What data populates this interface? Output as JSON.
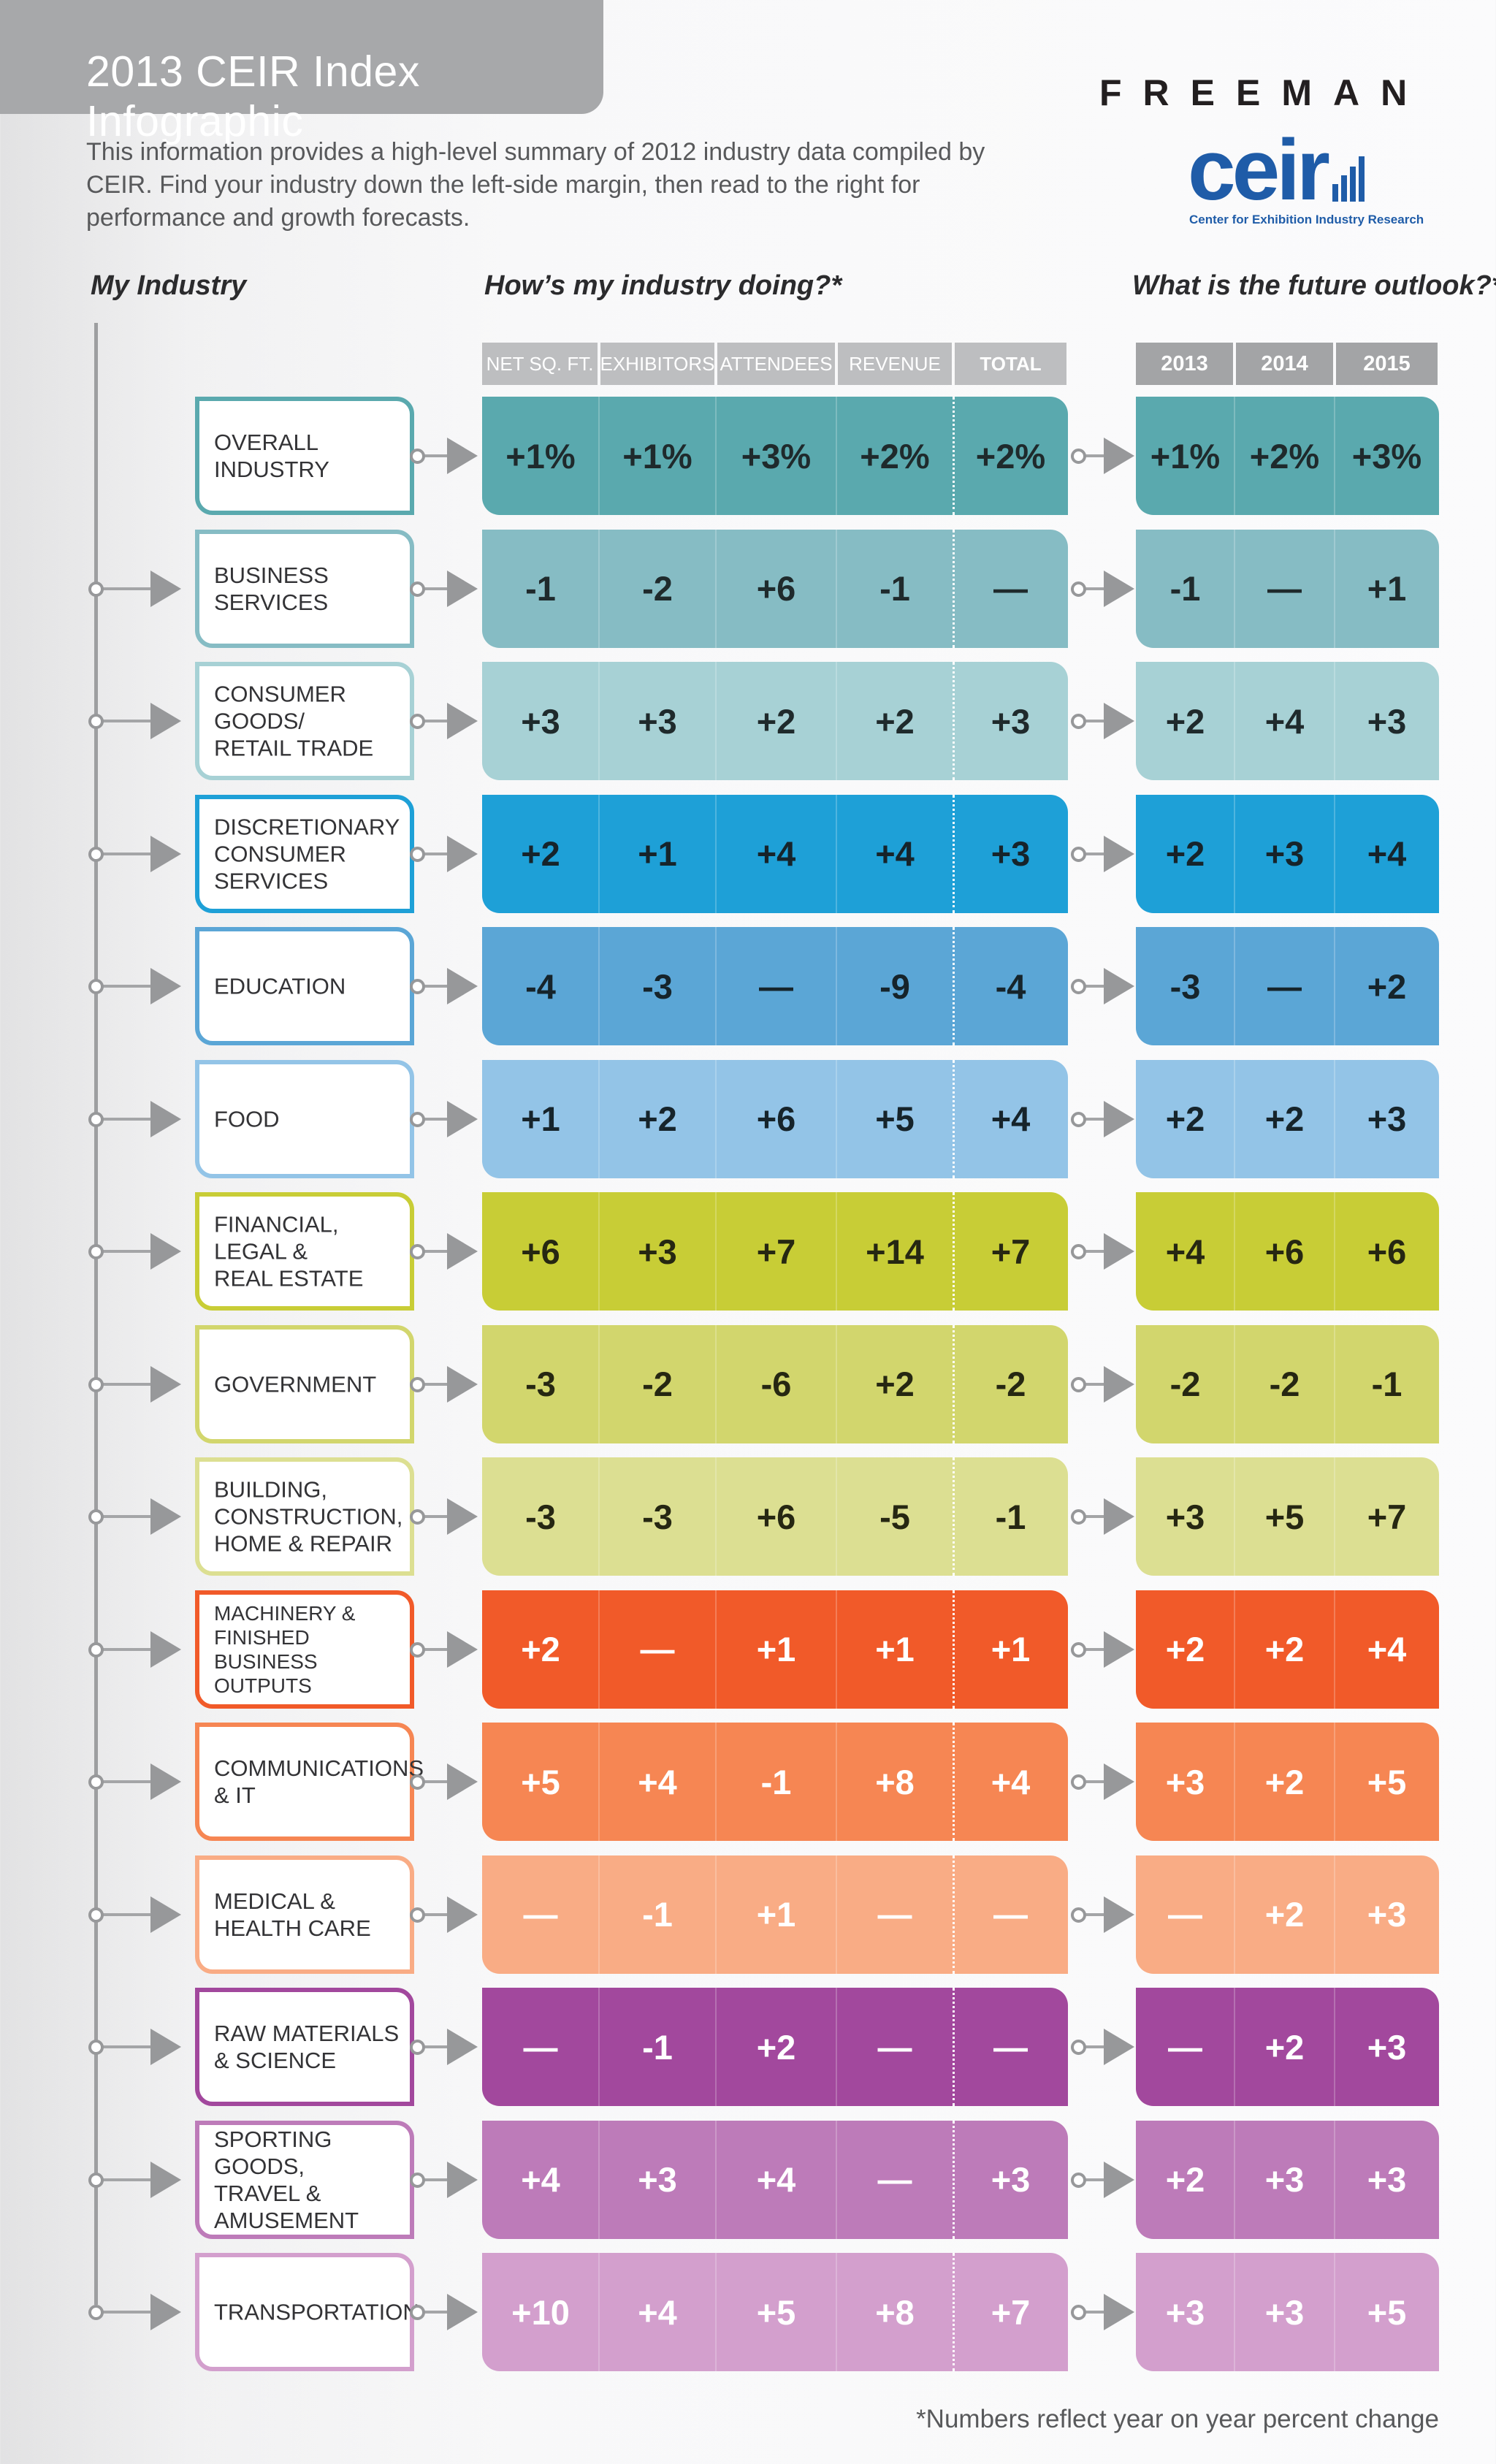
{
  "header": {
    "title": "2013 CEIR Index Infographic",
    "intro": "This information provides a high-level summary of 2012 industry data compiled by CEIR. Find your industry down the left-side margin, then read to the right for performance and growth forecasts.",
    "brand": "FREEMAN",
    "logo_text": "ceir",
    "logo_subtitle": "Center for Exhibition Industry Research"
  },
  "sections": {
    "my_industry": "My Industry",
    "doing": "How’s my industry doing?*",
    "outlook": "What is the future outlook?*"
  },
  "columns": {
    "current": [
      "NET SQ. FT.",
      "EXHIBITORS",
      "ATTENDEES",
      "REVENUE",
      "TOTAL"
    ],
    "forecast": [
      "2013",
      "2014",
      "2015"
    ]
  },
  "rows": [
    {
      "name": "OVERALL\nINDUSTRY",
      "color": "#5aa9ae",
      "text_color": "#1f2a2c",
      "current": [
        "+1%",
        "+1%",
        "+3%",
        "+2%",
        "+2%"
      ],
      "forecast": [
        "+1%",
        "+2%",
        "+3%"
      ]
    },
    {
      "name": "BUSINESS\nSERVICES",
      "color": "#86bcc4",
      "text_color": "#1f2a2c",
      "current": [
        "-1",
        "-2",
        "+6",
        "-1",
        "—"
      ],
      "forecast": [
        "-1",
        "—",
        "+1"
      ]
    },
    {
      "name": "CONSUMER\nGOODS/\nRETAIL TRADE",
      "color": "#a7d1d5",
      "text_color": "#1f2a2c",
      "current": [
        "+3",
        "+3",
        "+2",
        "+2",
        "+3"
      ],
      "forecast": [
        "+2",
        "+4",
        "+3"
      ]
    },
    {
      "name": "DISCRETIONARY\nCONSUMER\nSERVICES",
      "color": "#1ea0d7",
      "text_color": "#16242b",
      "current": [
        "+2",
        "+1",
        "+4",
        "+4",
        "+3"
      ],
      "forecast": [
        "+2",
        "+3",
        "+4"
      ]
    },
    {
      "name": "EDUCATION",
      "color": "#5ba6d6",
      "text_color": "#16242b",
      "current": [
        "-4",
        "-3",
        "—",
        "-9",
        "-4"
      ],
      "forecast": [
        "-3",
        "—",
        "+2"
      ]
    },
    {
      "name": "FOOD",
      "color": "#93c4e7",
      "text_color": "#16242b",
      "current": [
        "+1",
        "+2",
        "+6",
        "+5",
        "+4"
      ],
      "forecast": [
        "+2",
        "+2",
        "+3"
      ]
    },
    {
      "name": "FINANCIAL,\nLEGAL &\nREAL ESTATE",
      "color": "#c8cd36",
      "text_color": "#262712",
      "current": [
        "+6",
        "+3",
        "+7",
        "+14",
        "+7"
      ],
      "forecast": [
        "+4",
        "+6",
        "+6"
      ]
    },
    {
      "name": "GOVERNMENT",
      "color": "#d2d66d",
      "text_color": "#262712",
      "current": [
        "-3",
        "-2",
        "-6",
        "+2",
        "-2"
      ],
      "forecast": [
        "-2",
        "-2",
        "-1"
      ]
    },
    {
      "name": "BUILDING,\nCONSTRUCTION,\nHOME & REPAIR",
      "color": "#dcdf92",
      "text_color": "#262712",
      "current": [
        "-3",
        "-3",
        "+6",
        "-5",
        "-1"
      ],
      "forecast": [
        "+3",
        "+5",
        "+7"
      ]
    },
    {
      "name": "MACHINERY &\nFINISHED BUSINESS\nOUTPUTS",
      "color": "#f15a29",
      "text_color": "#ffffff",
      "small": true,
      "current": [
        "+2",
        "—",
        "+1",
        "+1",
        "+1"
      ],
      "forecast": [
        "+2",
        "+2",
        "+4"
      ]
    },
    {
      "name": "COMMUNICATIONS\n& IT",
      "color": "#f68653",
      "text_color": "#ffffff",
      "current": [
        "+5",
        "+4",
        "-1",
        "+8",
        "+4"
      ],
      "forecast": [
        "+3",
        "+2",
        "+5"
      ]
    },
    {
      "name": "MEDICAL &\nHEALTH CARE",
      "color": "#f9ac85",
      "text_color": "#ffffff",
      "current": [
        "—",
        "-1",
        "+1",
        "—",
        "—"
      ],
      "forecast": [
        "—",
        "+2",
        "+3"
      ]
    },
    {
      "name": "RAW MATERIALS\n& SCIENCE",
      "color": "#a2489d",
      "text_color": "#ffffff",
      "current": [
        "—",
        "-1",
        "+2",
        "—",
        "—"
      ],
      "forecast": [
        "—",
        "+2",
        "+3"
      ]
    },
    {
      "name": "SPORTING GOODS,\nTRAVEL &\nAMUSEMENT",
      "color": "#bd7bb9",
      "text_color": "#ffffff",
      "current": [
        "+4",
        "+3",
        "+4",
        "—",
        "+3"
      ],
      "forecast": [
        "+2",
        "+3",
        "+3"
      ]
    },
    {
      "name": "TRANSPORTATION",
      "color": "#d39fcd",
      "text_color": "#ffffff",
      "current": [
        "+10",
        "+4",
        "+5",
        "+8",
        "+7"
      ],
      "forecast": [
        "+3",
        "+3",
        "+5"
      ]
    }
  ],
  "footnote": "*Numbers reflect year on year percent change"
}
